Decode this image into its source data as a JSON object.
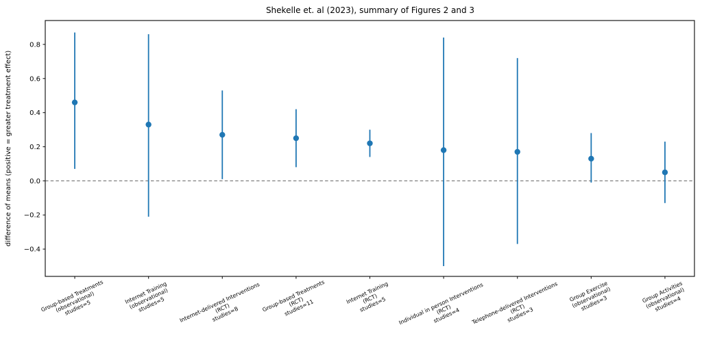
{
  "chart_data": {
    "type": "scatter",
    "subtype": "errorbar",
    "title": "Shekelle et. al (2023), summary of Figures 2 and 3",
    "xlabel": "",
    "ylabel": "difference of means (positive = greater treatment effect)",
    "categories": [
      [
        "Group-based Treatments",
        "(observational)",
        "studies=5"
      ],
      [
        "Internet Training",
        "(observational)",
        "studies=5"
      ],
      [
        "Internet-delivered Interventions",
        "(RCT)",
        "studies=8"
      ],
      [
        "Group-based Treatments",
        "(RCT)",
        "studies=11"
      ],
      [
        "Internet Training",
        "(RCT)",
        "studies=5"
      ],
      [
        "Individual in person Interventions",
        "(RCT)",
        "studies=4"
      ],
      [
        "Telephone-delivered Interventions",
        "(RCT)",
        "studies=3"
      ],
      [
        "Group Exercise",
        "(observational)",
        "studies=3"
      ],
      [
        "Group Activities",
        "(observational)",
        "studies=4"
      ]
    ],
    "series": [
      {
        "name": "difference of means",
        "means": [
          0.46,
          0.33,
          0.27,
          0.25,
          0.22,
          0.18,
          0.17,
          0.13,
          0.05
        ],
        "ci_low": [
          0.07,
          -0.21,
          0.01,
          0.08,
          0.14,
          -0.5,
          -0.37,
          -0.01,
          -0.13
        ],
        "ci_high": [
          0.87,
          0.86,
          0.53,
          0.42,
          0.3,
          0.84,
          0.72,
          0.28,
          0.23
        ]
      }
    ],
    "yticks": {
      "values": [
        -0.4,
        -0.2,
        0.0,
        0.2,
        0.4,
        0.6,
        0.8
      ],
      "labels": [
        "−0.4",
        "−0.2",
        "0.0",
        "0.2",
        "0.4",
        "0.6",
        "0.8"
      ]
    },
    "ylim": [
      -0.56,
      0.94
    ],
    "xlim": [
      -0.4,
      8.4
    ],
    "grid": false,
    "legend": false,
    "x_tick_rotation_deg": 25,
    "zero_line": {
      "value": 0.0,
      "style": "dashed",
      "color": "#7f7f7f"
    },
    "colors": {
      "marker": "#1f77b4",
      "errorbar": "#1f77b4",
      "spine": "#1a1a1a",
      "text": "#000000",
      "background": "#ffffff"
    }
  }
}
